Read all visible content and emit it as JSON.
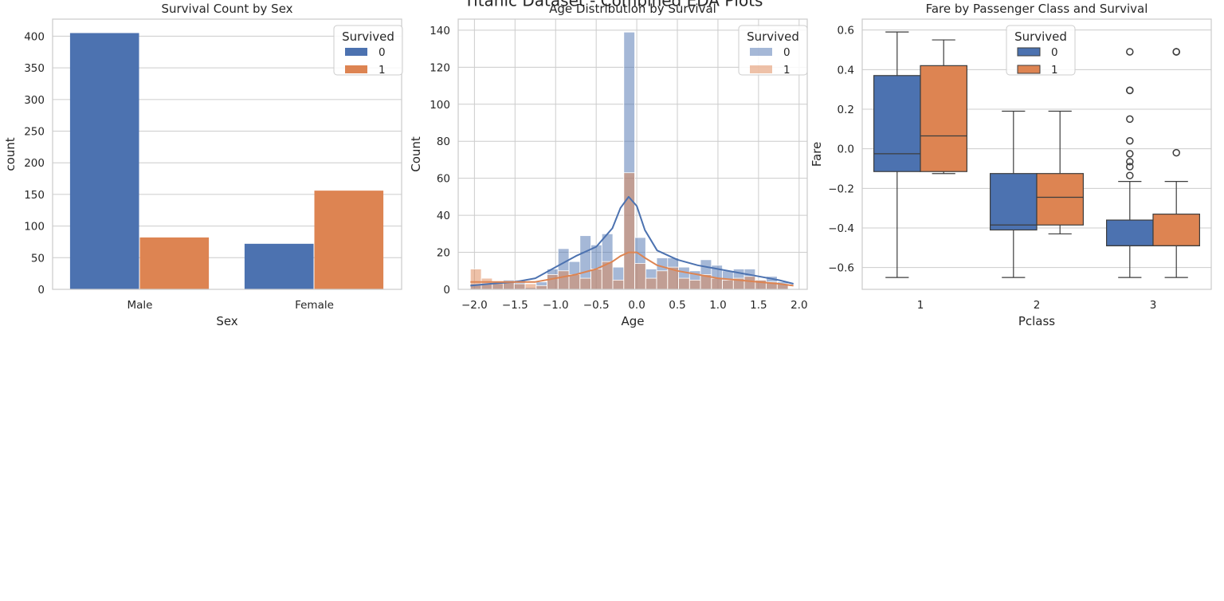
{
  "figure": {
    "suptitle": "Titanic Dataset - Combined EDA Plots",
    "colors": {
      "survived_0": "#4c72b0",
      "survived_1": "#dd8452",
      "grid": "#cccccc",
      "axis_edge": "#cccccc",
      "box_line": "#3d3d3d"
    }
  },
  "chart_data": [
    {
      "type": "bar",
      "title": "Survival Count by Sex",
      "xlabel": "Sex",
      "ylabel": "count",
      "categories": [
        "Male",
        "Female"
      ],
      "series": [
        {
          "name": "0",
          "values": [
            405,
            72
          ]
        },
        {
          "name": "1",
          "values": [
            82,
            156
          ]
        }
      ],
      "ylim": [
        0,
        427
      ],
      "yticks": [
        0,
        50,
        100,
        150,
        200,
        250,
        300,
        350,
        400
      ],
      "legend": {
        "title": "Survived",
        "placement": "top-right"
      },
      "grid": true
    },
    {
      "type": "histogram",
      "title": "Age Distribution by Survival",
      "xlabel": "Age",
      "ylabel": "Count",
      "bins": {
        "start": -2.05,
        "width": 0.135
      },
      "series": [
        {
          "name": "0",
          "values": [
            3,
            3,
            3,
            5,
            5,
            1,
            4,
            11,
            22,
            15,
            29,
            24,
            30,
            12,
            139,
            28,
            11,
            17,
            17,
            12,
            10,
            16,
            13,
            10,
            11,
            11,
            5,
            7,
            4
          ]
        },
        {
          "name": "1",
          "values": [
            11,
            6,
            4,
            4,
            3,
            3,
            2,
            8,
            10,
            8,
            6,
            11,
            15,
            5,
            63,
            14,
            6,
            10,
            12,
            6,
            5,
            8,
            6,
            5,
            6,
            7,
            5,
            4,
            3
          ]
        }
      ],
      "kde": [
        {
          "name": "0",
          "x": [
            -2.05,
            -1.8,
            -1.5,
            -1.25,
            -1.0,
            -0.75,
            -0.5,
            -0.3,
            -0.2,
            -0.1,
            0.0,
            0.1,
            0.25,
            0.5,
            0.75,
            1.0,
            1.25,
            1.5,
            1.75,
            1.93
          ],
          "y": [
            2,
            3,
            4,
            6,
            12,
            18,
            23,
            33,
            44,
            50,
            45,
            32,
            21,
            16,
            13,
            11,
            9,
            7,
            5,
            3
          ]
        },
        {
          "name": "1",
          "x": [
            -2.05,
            -1.8,
            -1.5,
            -1.25,
            -1.0,
            -0.75,
            -0.5,
            -0.3,
            -0.2,
            -0.1,
            0.0,
            0.1,
            0.25,
            0.5,
            0.75,
            1.0,
            1.25,
            1.5,
            1.75,
            1.93
          ],
          "y": [
            4,
            4,
            4,
            4,
            6,
            8,
            11,
            15,
            18,
            20,
            20,
            17,
            13,
            10,
            8,
            6,
            5,
            4,
            3,
            2
          ]
        }
      ],
      "xlim": [
        -2.2,
        2.1
      ],
      "ylim": [
        0,
        146
      ],
      "xticks": [
        -2.0,
        -1.5,
        -1.0,
        -0.5,
        0.0,
        0.5,
        1.0,
        1.5,
        2.0
      ],
      "xtick_labels": [
        "−2.0",
        "−1.5",
        "−1.0",
        "−0.5",
        "0.0",
        "0.5",
        "1.0",
        "1.5",
        "2.0"
      ],
      "yticks": [
        0,
        20,
        40,
        60,
        80,
        100,
        120,
        140
      ],
      "legend": {
        "title": "Survived",
        "placement": "top-right"
      },
      "grid": true
    },
    {
      "type": "box",
      "title": "Fare by Passenger Class and Survival",
      "xlabel": "Pclass",
      "ylabel": "Fare",
      "categories": [
        "1",
        "2",
        "3"
      ],
      "series": [
        {
          "name": "0",
          "boxes": [
            {
              "whislo": -0.65,
              "q1": -0.115,
              "med": -0.025,
              "q3": 0.37,
              "whishi": 0.59,
              "fliers": []
            },
            {
              "whislo": -0.65,
              "q1": -0.41,
              "med": -0.385,
              "q3": -0.125,
              "whishi": 0.19,
              "fliers": []
            },
            {
              "whislo": -0.65,
              "q1": -0.49,
              "med": -0.49,
              "q3": -0.36,
              "whishi": -0.165,
              "fliers": [
                -0.135,
                -0.09,
                -0.065,
                -0.025,
                0.04,
                0.15,
                0.295,
                0.295,
                0.49
              ]
            }
          ]
        },
        {
          "name": "1",
          "boxes": [
            {
              "whislo": -0.125,
              "q1": -0.115,
              "med": 0.065,
              "q3": 0.42,
              "whishi": 0.55,
              "fliers": []
            },
            {
              "whislo": -0.43,
              "q1": -0.385,
              "med": -0.245,
              "q3": -0.125,
              "whishi": 0.19,
              "fliers": []
            },
            {
              "whislo": -0.65,
              "q1": -0.49,
              "med": -0.49,
              "q3": -0.33,
              "whishi": -0.165,
              "fliers": [
                -0.02,
                0.49,
                0.49
              ]
            }
          ]
        }
      ],
      "ylim": [
        -0.71,
        0.655
      ],
      "yticks": [
        -0.6,
        -0.4,
        -0.2,
        0.0,
        0.2,
        0.4,
        0.6
      ],
      "ytick_labels": [
        "−0.6",
        "−0.4",
        "−0.2",
        "0.0",
        "0.2",
        "0.4",
        "0.6"
      ],
      "legend": {
        "title": "Survived",
        "placement": "top-center"
      },
      "grid": true
    }
  ]
}
